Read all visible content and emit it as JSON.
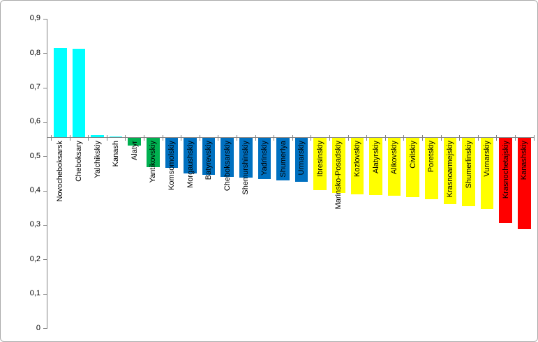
{
  "window": {
    "background_color": "#FFFFFF",
    "border_color": "#ABABAB"
  },
  "chart_data": {
    "type": "bar",
    "title": "",
    "xlabel": "",
    "ylabel": "",
    "grid": "off",
    "legend": "none",
    "orientation": "vertical-bars-from-baseline",
    "baseline": 0.5554,
    "ylim": [
      0,
      0.9
    ],
    "decimal_separator": ",",
    "axis_color": "#808080",
    "y_tick_values": [
      0,
      0.1,
      0.2,
      0.3,
      0.4,
      0.5,
      0.6,
      0.7,
      0.8,
      0.9
    ],
    "y_tick_labels": [
      "0",
      "0,1",
      "0,2",
      "0,3",
      "0,4",
      "0,5",
      "0,6",
      "0,7",
      "0,8",
      "0,9"
    ],
    "categories": [
      "Novocheboksarsk",
      "Cheboksary",
      "Yalchikskiy",
      "Kanash",
      "Alatyr",
      "Yantikovskiy",
      "Komsomolskiy",
      "Morgaushskiy",
      "Batyrevskiy",
      "Cheboksarskiy",
      "Shemurshinskiy",
      "Yadrinskiy",
      "Shumerlya",
      "Urmarskiy",
      "Ibresinskiy",
      "Marinsko-Posadskiy",
      "Kozlovskiy",
      "Alatyrskiy",
      "Alikovskiy",
      "Civilskiy",
      "Poretskiy",
      "Krasnoarmejskiy",
      "Shumerlinskiy",
      "Vurnarskiy",
      "Krasnochetajskiy",
      "Kanashskiy"
    ],
    "values": [
      0.815,
      0.812,
      0.562,
      0.558,
      0.532,
      0.471,
      0.469,
      0.452,
      0.447,
      0.441,
      0.439,
      0.436,
      0.432,
      0.427,
      0.403,
      0.396,
      0.392,
      0.39,
      0.388,
      0.383,
      0.376,
      0.363,
      0.357,
      0.349,
      0.308,
      0.289
    ],
    "bar_colors": [
      "#00FFFF",
      "#00FFFF",
      "#00FFFF",
      "#00FFFF",
      "#00B050",
      "#00B050",
      "#0070C0",
      "#0070C0",
      "#0070C0",
      "#0070C0",
      "#0070C0",
      "#0070C0",
      "#0070C0",
      "#0070C0",
      "#FFFF00",
      "#FFFF00",
      "#FFFF00",
      "#FFFF00",
      "#FFFF00",
      "#FFFF00",
      "#FFFF00",
      "#FFFF00",
      "#FFFF00",
      "#FFFF00",
      "#FF0000",
      "#FF0000"
    ],
    "palette": {
      "cyan_group": "#00FFFF",
      "green_group": "#00B050",
      "blue_group": "#0070C0",
      "yellow_group": "#FFFF00",
      "red_group": "#FF0000"
    }
  }
}
